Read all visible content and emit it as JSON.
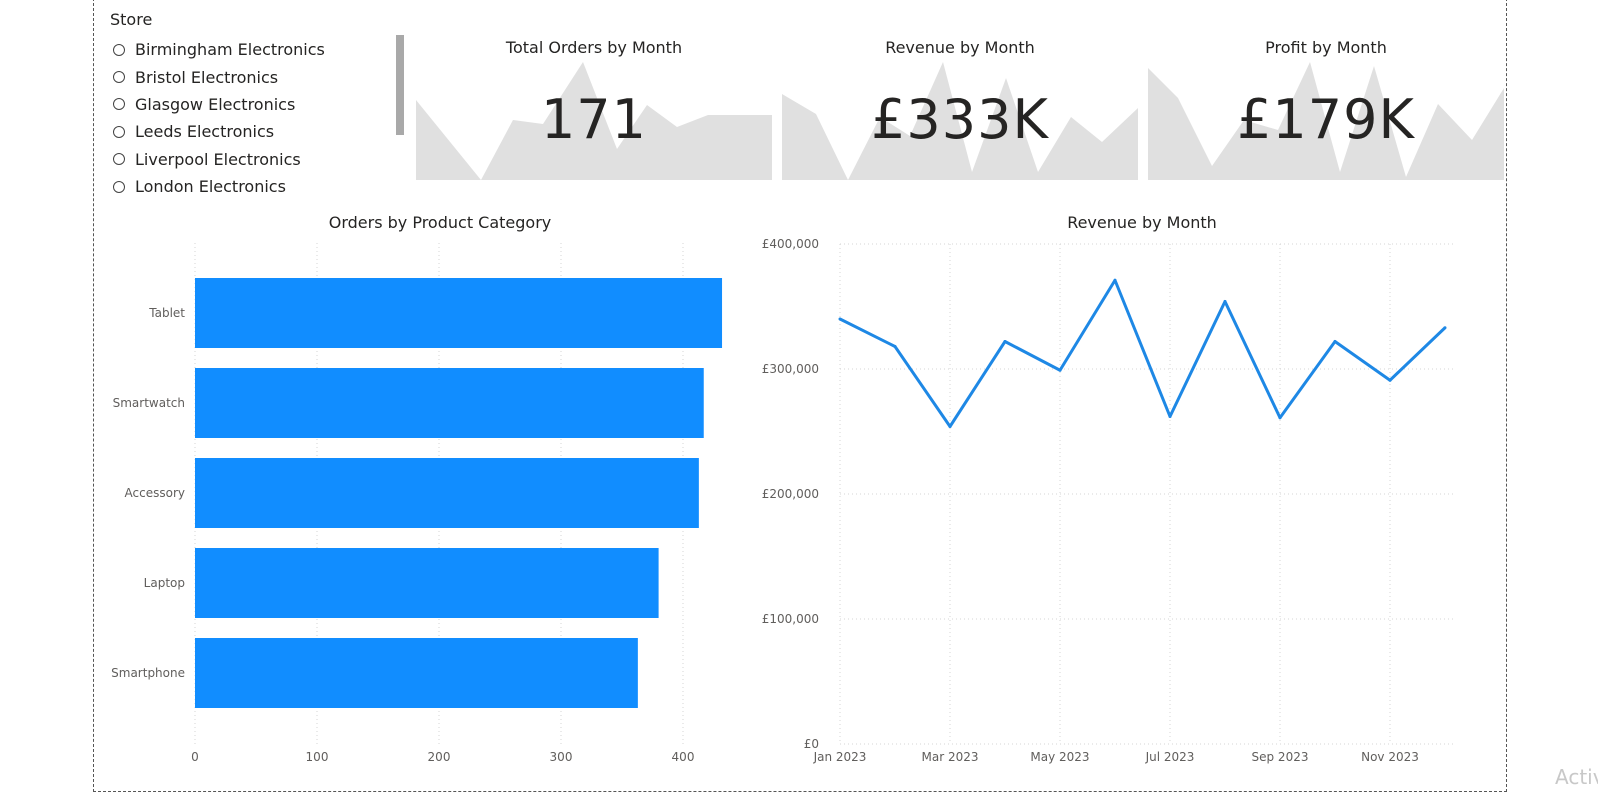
{
  "slicer": {
    "title": "Store",
    "items": [
      {
        "label": "Birmingham Electronics"
      },
      {
        "label": "Bristol Electronics"
      },
      {
        "label": "Glasgow Electronics"
      },
      {
        "label": "Leeds Electronics"
      },
      {
        "label": "Liverpool Electronics"
      },
      {
        "label": "London Electronics"
      }
    ]
  },
  "cards": [
    {
      "title": "Total Orders by Month",
      "value": "171"
    },
    {
      "title": "Revenue by Month",
      "value": "£333K"
    },
    {
      "title": "Profit by Month",
      "value": "£179K"
    }
  ],
  "colors": {
    "bar": "#118dff",
    "line": "#1e88e5",
    "spark": "#e0e0e0",
    "grid": "#d6d6d6"
  },
  "watermark": "Activ",
  "chart_data": [
    {
      "type": "bar",
      "title": "Orders by Product Category",
      "orientation": "horizontal",
      "categories": [
        "Tablet",
        "Smartwatch",
        "Accessory",
        "Laptop",
        "Smartphone"
      ],
      "values": [
        432,
        417,
        413,
        380,
        363
      ],
      "xlim": [
        0,
        440
      ],
      "xticks": [
        0,
        100,
        200,
        300,
        400
      ],
      "grid": true
    },
    {
      "type": "line",
      "title": "Revenue by Month",
      "x": [
        "Jan 2023",
        "Feb 2023",
        "Mar 2023",
        "Apr 2023",
        "May 2023",
        "Jun 2023",
        "Jul 2023",
        "Aug 2023",
        "Sep 2023",
        "Oct 2023",
        "Nov 2023",
        "Dec 2023"
      ],
      "xtick_labels": [
        "Jan 2023",
        "Mar 2023",
        "May 2023",
        "Jul 2023",
        "Sep 2023",
        "Nov 2023"
      ],
      "values": [
        340000,
        318000,
        254000,
        322000,
        299000,
        371000,
        262000,
        354000,
        261000,
        322000,
        291000,
        333000
      ],
      "ylim": [
        0,
        400000
      ],
      "yticks": [
        0,
        100000,
        200000,
        300000,
        400000
      ],
      "ytick_labels": [
        "£0",
        "£100,000",
        "£200,000",
        "£300,000",
        "£400,000"
      ],
      "grid": true
    }
  ]
}
